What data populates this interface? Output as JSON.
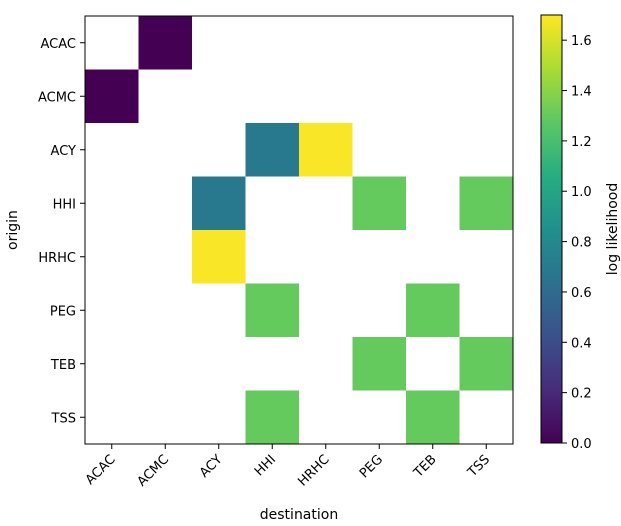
{
  "chart_data": {
    "type": "heatmap",
    "title": "",
    "xlabel": "destination",
    "ylabel": "origin",
    "x_categories": [
      "ACAC",
      "ACMC",
      "ACY",
      "HHI",
      "HRHC",
      "PEG",
      "TEB",
      "TSS"
    ],
    "y_categories": [
      "ACAC",
      "ACMC",
      "ACY",
      "HHI",
      "HRHC",
      "PEG",
      "TEB",
      "TSS"
    ],
    "values": [
      [
        null,
        0.0,
        null,
        null,
        null,
        null,
        null,
        null
      ],
      [
        0.0,
        null,
        null,
        null,
        null,
        null,
        null,
        null
      ],
      [
        null,
        null,
        null,
        0.69,
        1.69,
        null,
        null,
        null
      ],
      [
        null,
        null,
        0.69,
        null,
        null,
        1.3,
        null,
        1.3
      ],
      [
        null,
        null,
        1.69,
        null,
        null,
        null,
        null,
        null
      ],
      [
        null,
        null,
        null,
        1.3,
        null,
        null,
        1.3,
        null
      ],
      [
        null,
        null,
        null,
        null,
        null,
        1.3,
        null,
        1.3
      ],
      [
        null,
        null,
        null,
        1.3,
        null,
        null,
        1.3,
        null
      ]
    ],
    "colorbar": {
      "label": "log likelihood",
      "range": [
        0.0,
        1.7
      ],
      "ticks": [
        "0.0",
        "0.2",
        "0.4",
        "0.6",
        "0.8",
        "1.0",
        "1.2",
        "1.4",
        "1.6"
      ],
      "colormap": "viridis"
    },
    "grid": false
  }
}
